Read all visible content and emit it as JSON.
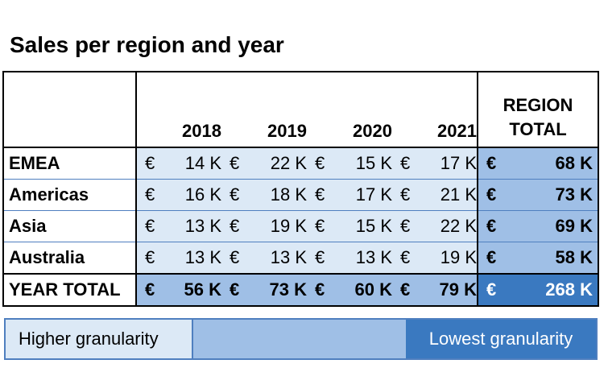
{
  "title": "Sales per region and year",
  "chart_data": {
    "type": "table",
    "title": "Sales per region and year",
    "currency": "€",
    "years": [
      "2018",
      "2019",
      "2020",
      "2021"
    ],
    "region_total_header": [
      "REGION",
      "TOTAL"
    ],
    "rows": [
      {
        "region": "EMEA",
        "values": [
          "14 K",
          "22 K",
          "15 K",
          "17 K"
        ],
        "total": "68 K"
      },
      {
        "region": "Americas",
        "values": [
          "16 K",
          "18 K",
          "17 K",
          "21 K"
        ],
        "total": "73 K"
      },
      {
        "region": "Asia",
        "values": [
          "13 K",
          "19 K",
          "15 K",
          "22 K"
        ],
        "total": "69 K"
      },
      {
        "region": "Australia",
        "values": [
          "13 K",
          "13 K",
          "13 K",
          "19 K"
        ],
        "total": "58 K"
      }
    ],
    "year_total": {
      "label": "YEAR TOTAL",
      "values": [
        "56 K",
        "73 K",
        "60 K",
        "79 K"
      ],
      "total": "268 K"
    }
  },
  "legend": {
    "higher": "Higher granularity",
    "lowest": "Lowest granularity"
  },
  "colors": {
    "light": "#dce9f6",
    "mid": "#9fbfe6",
    "dark": "#3a79c0"
  }
}
